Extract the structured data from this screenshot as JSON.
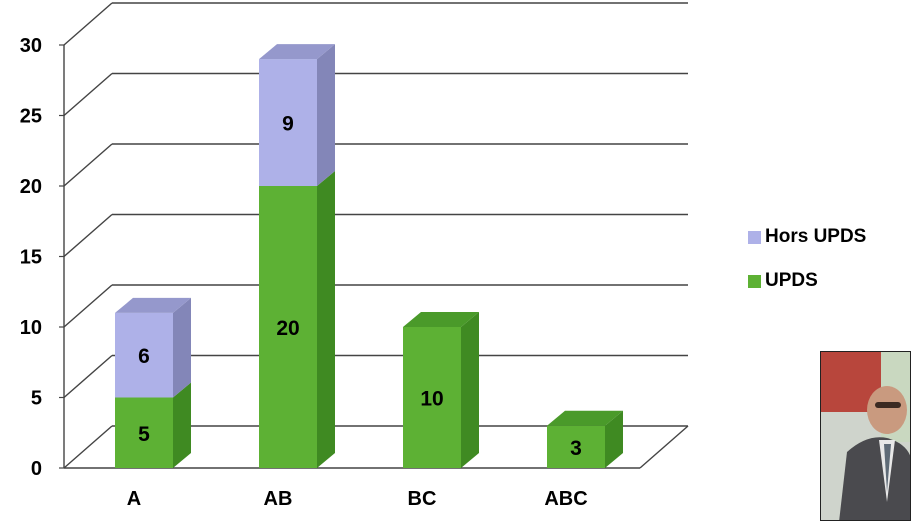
{
  "chart_data": {
    "type": "bar",
    "stacked": true,
    "three_d": true,
    "categories": [
      "A",
      "AB",
      "BC",
      "ABC"
    ],
    "series": [
      {
        "name": "UPDS",
        "values": [
          5,
          20,
          10,
          3
        ],
        "color": "#5db134",
        "side_color": "#3f8a22",
        "top_color": "#4a9a2a"
      },
      {
        "name": "Hors UPDS",
        "values": [
          6,
          9,
          0,
          0
        ],
        "color": "#aeb1e8",
        "side_color": "#8386b8",
        "top_color": "#9598cc"
      }
    ],
    "yticks": [
      0,
      5,
      10,
      15,
      20,
      25,
      30
    ],
    "ylim": [
      0,
      30
    ],
    "grid": true,
    "legend_position": "right"
  },
  "photo": {
    "icon": "portrait-photo"
  }
}
